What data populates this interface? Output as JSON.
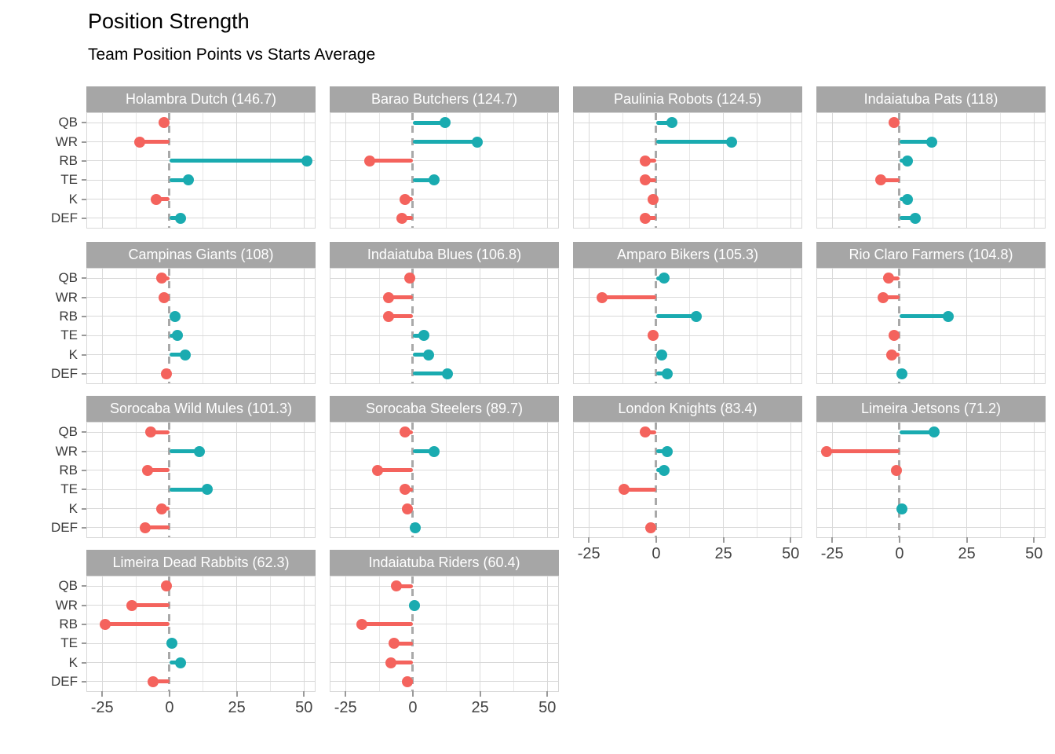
{
  "header": {
    "title": "Position Strength",
    "subtitle": "Team Position Points vs Starts Average"
  },
  "chart_data": {
    "type": "bar",
    "subtype": "faceted-lollipop",
    "title": "Position Strength",
    "subtitle": "Team Position Points vs Starts Average",
    "categories": [
      "QB",
      "WR",
      "RB",
      "TE",
      "K",
      "DEF"
    ],
    "x_ticks": [
      -25,
      0,
      25,
      50
    ],
    "x_minor_ticks": [
      -12.5,
      12.5,
      37.5
    ],
    "x_domain": [
      -30.6,
      54
    ],
    "zero_baseline": 0,
    "grid": true,
    "legend": "none",
    "colors": {
      "positive": "#1aabb0",
      "negative": "#f4635d",
      "strip_bg": "#a6a6a6",
      "strip_text": "#ffffff",
      "gridline_major": "#d9d9d9",
      "gridline_minor": "#e7e7e7",
      "panel_border": "#d8d8d8",
      "zero_line": "#a9a9a9",
      "axis_text": "#444444"
    },
    "facets": [
      {
        "team": "Holambra Dutch",
        "total": "146.7",
        "values": [
          -2,
          -11,
          51,
          7,
          -5,
          4
        ]
      },
      {
        "team": "Barao Butchers",
        "total": "124.7",
        "values": [
          12,
          24,
          -16,
          8,
          -3,
          -4
        ]
      },
      {
        "team": "Paulinia Robots",
        "total": "124.5",
        "values": [
          6,
          28,
          -4,
          -4,
          -1,
          -4
        ]
      },
      {
        "team": "Indaiatuba Pats",
        "total": "118",
        "values": [
          -2,
          12,
          3,
          -7,
          3,
          6
        ]
      },
      {
        "team": "Campinas Giants",
        "total": "108",
        "values": [
          -3,
          -2,
          2,
          3,
          6,
          -1
        ]
      },
      {
        "team": "Indaiatuba Blues",
        "total": "106.8",
        "values": [
          -1,
          -9,
          -9,
          4,
          6,
          13
        ]
      },
      {
        "team": "Amparo Bikers",
        "total": "105.3",
        "values": [
          3,
          -20,
          15,
          -1,
          2,
          4
        ]
      },
      {
        "team": "Rio Claro Farmers",
        "total": "104.8",
        "values": [
          -4,
          -6,
          18,
          -2,
          -3,
          1
        ]
      },
      {
        "team": "Sorocaba Wild Mules",
        "total": "101.3",
        "values": [
          -7,
          11,
          -8,
          14,
          -3,
          -9
        ]
      },
      {
        "team": "Sorocaba Steelers",
        "total": "89.7",
        "values": [
          -3,
          8,
          -13,
          -3,
          -2,
          1
        ]
      },
      {
        "team": "London Knights",
        "total": "83.4",
        "values": [
          -4,
          4,
          3,
          -12,
          null,
          -2
        ]
      },
      {
        "team": "Limeira Jetsons",
        "total": "71.2",
        "values": [
          13,
          -27,
          -1,
          null,
          1,
          null
        ]
      },
      {
        "team": "Limeira Dead Rabbits",
        "total": "62.3",
        "values": [
          -1,
          -14,
          -24,
          1,
          4,
          -6
        ]
      },
      {
        "team": "Indaiatuba Riders",
        "total": "60.4",
        "values": [
          -6,
          0.5,
          -19,
          -7,
          -8,
          -2
        ]
      }
    ]
  }
}
